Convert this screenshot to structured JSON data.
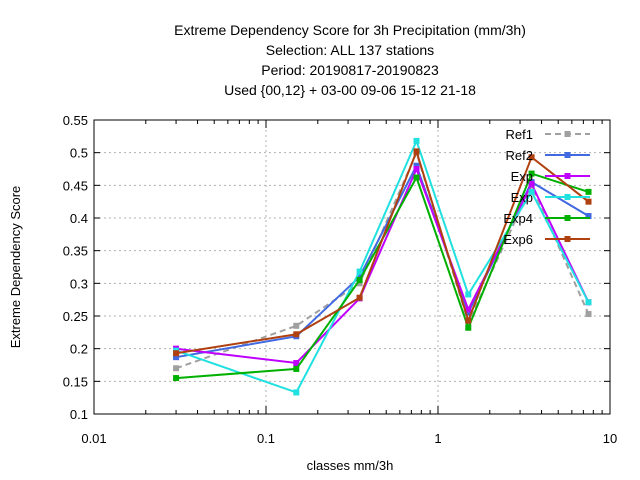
{
  "chart_data": {
    "type": "line",
    "title_lines": [
      "Extreme Dependency Score  for 3h Precipitation (mm/3h)",
      "Selection: ALL     137 stations",
      "Period: 20190817-20190823",
      "Used {00,12} + 03-00 09-06 15-12 21-18"
    ],
    "xlabel": "classes mm/3h",
    "ylabel": "Extreme Dependency Score",
    "x_scale": "log",
    "xlim": [
      0.01,
      10
    ],
    "ylim": [
      0.1,
      0.55
    ],
    "x_ticks": [
      {
        "value": 0.01,
        "label": "0.01"
      },
      {
        "value": 0.1,
        "label": "0.1"
      },
      {
        "value": 1,
        "label": "1"
      },
      {
        "value": 10,
        "label": "10"
      }
    ],
    "y_ticks": [
      {
        "value": 0.1,
        "label": "0.1"
      },
      {
        "value": 0.15,
        "label": "0.15"
      },
      {
        "value": 0.2,
        "label": "0.2"
      },
      {
        "value": 0.25,
        "label": "0.25"
      },
      {
        "value": 0.3,
        "label": "0.3"
      },
      {
        "value": 0.35,
        "label": "0.35"
      },
      {
        "value": 0.4,
        "label": "0.4"
      },
      {
        "value": 0.45,
        "label": "0.45"
      },
      {
        "value": 0.5,
        "label": "0.5"
      },
      {
        "value": 0.55,
        "label": "0.55"
      }
    ],
    "grid": true,
    "legend_position": "top-right",
    "x": [
      0.03,
      0.15,
      0.35,
      0.75,
      1.5,
      3.5,
      7.5
    ],
    "series": [
      {
        "name": "Ref1",
        "color": "#a0a0a0",
        "dashed": true,
        "values": [
          0.17,
          0.235,
          0.3,
          0.5,
          0.24,
          0.45,
          0.253
        ]
      },
      {
        "name": "Ref2",
        "color": "#4169e1",
        "dashed": false,
        "values": [
          0.187,
          0.219,
          0.31,
          0.48,
          0.255,
          0.455,
          0.403
        ]
      },
      {
        "name": "Exp",
        "color": "#c000ff",
        "dashed": false,
        "values": [
          0.2,
          0.178,
          0.277,
          0.475,
          0.26,
          0.452,
          0.271
        ]
      },
      {
        "name": "Exp",
        "color": "#20e0e0",
        "dashed": false,
        "values": [
          0.197,
          0.133,
          0.318,
          0.518,
          0.283,
          0.44,
          0.271
        ]
      },
      {
        "name": "Exp4",
        "color": "#00b000",
        "dashed": false,
        "values": [
          0.155,
          0.169,
          0.305,
          0.462,
          0.232,
          0.468,
          0.44
        ]
      },
      {
        "name": "Exp6",
        "color": "#b04010",
        "dashed": false,
        "values": [
          0.193,
          0.222,
          0.278,
          0.502,
          0.243,
          0.493,
          0.425
        ]
      }
    ]
  }
}
